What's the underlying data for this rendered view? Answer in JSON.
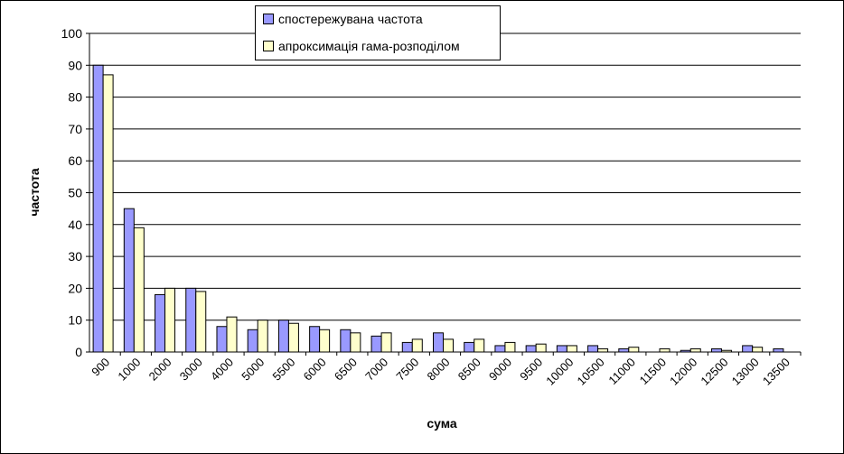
{
  "chart_data": {
    "type": "bar",
    "title": "",
    "xlabel": "сума",
    "ylabel": "частота",
    "ylim": [
      0,
      100
    ],
    "yticks": [
      0,
      10,
      20,
      30,
      40,
      50,
      60,
      70,
      80,
      90,
      100
    ],
    "grid": true,
    "legend_position": "top-center",
    "categories": [
      "900",
      "1000",
      "2000",
      "3000",
      "4000",
      "5000",
      "5500",
      "6000",
      "6500",
      "7000",
      "7500",
      "8000",
      "8500",
      "9000",
      "9500",
      "10000",
      "10500",
      "11000",
      "11500",
      "12000",
      "12500",
      "13000",
      "13500"
    ],
    "series": [
      {
        "name": "спостережувана частота",
        "color": "#9999ff",
        "values": [
          90,
          45,
          18,
          20,
          8,
          7,
          10,
          8,
          7,
          5,
          3,
          6,
          3,
          2,
          2,
          2,
          2,
          1,
          0,
          0.5,
          1,
          2,
          1
        ]
      },
      {
        "name": "апроксимація гама-розподілом",
        "color": "#ffffcc",
        "values": [
          87,
          39,
          20,
          19,
          11,
          10,
          9,
          7,
          6,
          6,
          4,
          4,
          4,
          3,
          2.5,
          2,
          1,
          1.5,
          1,
          1,
          0.5,
          1.5,
          0
        ]
      }
    ]
  }
}
